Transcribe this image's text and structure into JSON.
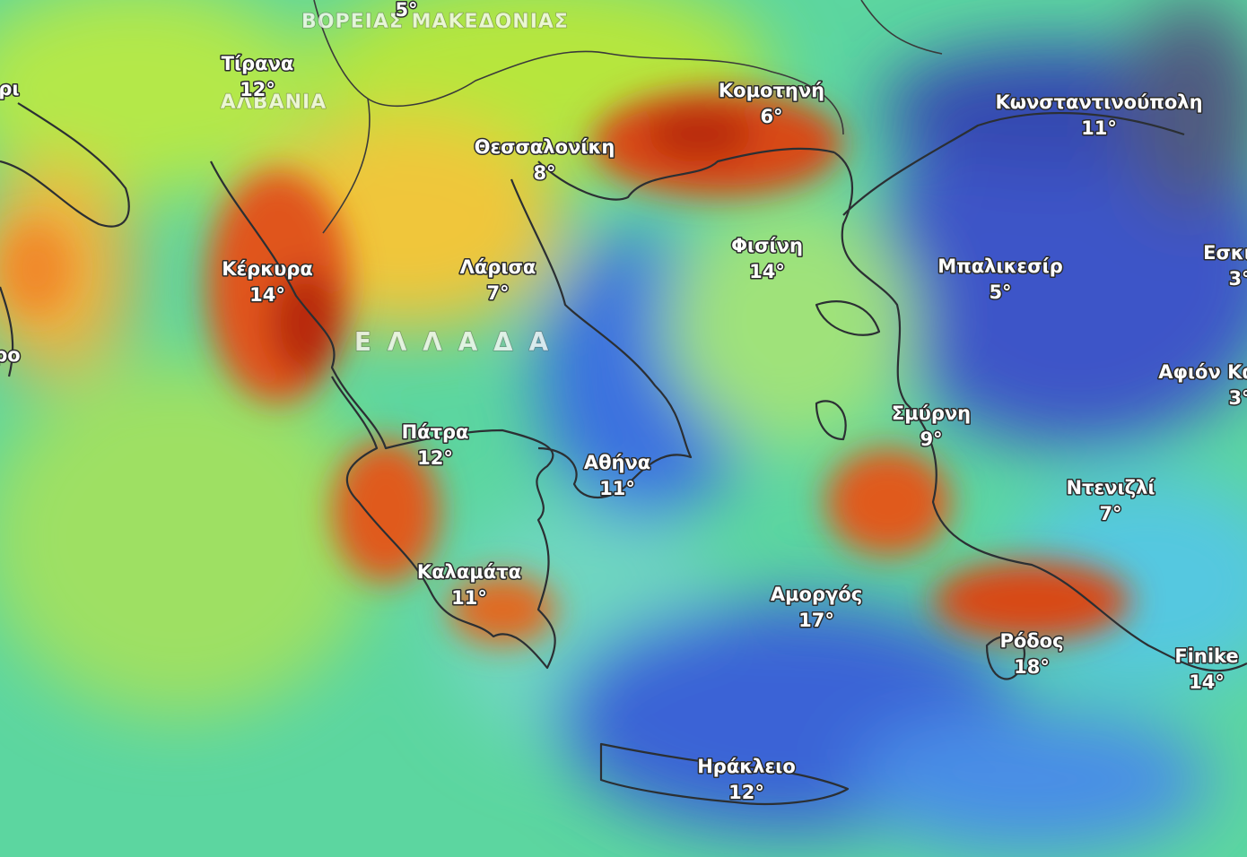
{
  "country_labels": [
    {
      "label": "ΒΟΡΕΙΑΣ ΜΑΚΕΔΟΝΙΑΣ"
    },
    {
      "label": "ΑΛΒΑΝΙΑ"
    },
    {
      "label": "Ε Λ Λ Α Δ Α"
    }
  ],
  "cities": [
    {
      "name": "Τίρανα",
      "temp": "12°"
    },
    {
      "temp": "5°"
    },
    {
      "name": "Κομοτηνή",
      "temp": "6°"
    },
    {
      "name": "Κωνσταντινούπολη",
      "temp": "11°"
    },
    {
      "name": "Θεσσαλονίκη",
      "temp": "8°"
    },
    {
      "name": "Φισίνη",
      "temp": "14°"
    },
    {
      "name": "Μπαλικεσίρ",
      "temp": "5°"
    },
    {
      "name": "Κέρκυρα",
      "temp": "14°"
    },
    {
      "name": "Λάρισα",
      "temp": "7°"
    },
    {
      "name": "Σμύρνη",
      "temp": "9°"
    },
    {
      "name": "Πάτρα",
      "temp": "12°"
    },
    {
      "name": "Αθήνα",
      "temp": "11°"
    },
    {
      "name": "Ντενιζλί",
      "temp": "7°"
    },
    {
      "name": "Καλαμάτα",
      "temp": "11°"
    },
    {
      "name": "Αμοργός",
      "temp": "17°"
    },
    {
      "name": "Ρόδος",
      "temp": "18°"
    },
    {
      "name": "Finike",
      "temp": "14°"
    },
    {
      "name": "Ηράκλειο",
      "temp": "12°"
    },
    {
      "name": "Εσκι",
      "temp": "3°"
    },
    {
      "name": "Αφιόν Κα",
      "temp": "3°"
    },
    {
      "name": "ρι"
    },
    {
      "name": "ρο"
    }
  ]
}
